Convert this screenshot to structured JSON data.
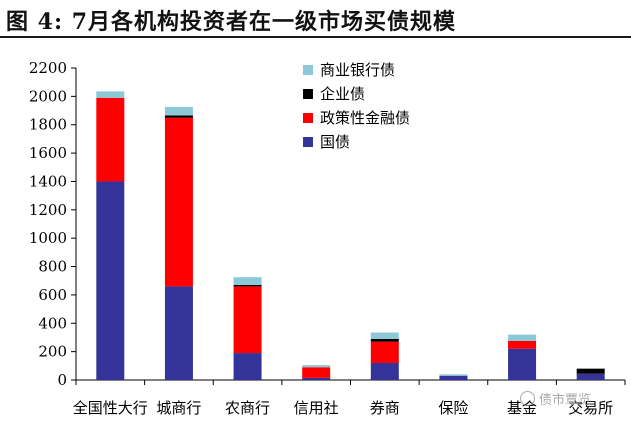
{
  "header": {
    "title": "图 4:  7月各机构投资者在一级市场买债规模"
  },
  "watermark": {
    "text": "债市覃览"
  },
  "chart_data": {
    "type": "bar",
    "stacked": true,
    "categories": [
      "全国性大行",
      "城商行",
      "农商行",
      "信用社",
      "券商",
      "保险",
      "基金",
      "交易所"
    ],
    "series": [
      {
        "name": "国债",
        "color": "#333399",
        "values": [
          1400,
          660,
          190,
          15,
          120,
          30,
          220,
          45
        ]
      },
      {
        "name": "政策性金融债",
        "color": "#ff0000",
        "values": [
          590,
          1190,
          470,
          75,
          150,
          0,
          55,
          0
        ]
      },
      {
        "name": "企业债",
        "color": "#000000",
        "values": [
          0,
          15,
          10,
          0,
          20,
          0,
          0,
          35
        ]
      },
      {
        "name": "商业银行债",
        "color": "#8dc8d8",
        "values": [
          45,
          60,
          55,
          15,
          45,
          10,
          45,
          0
        ]
      }
    ],
    "legend_order": [
      "商业银行债",
      "企业债",
      "政策性金融债",
      "国债"
    ],
    "legend_position": "top-center",
    "ylim": [
      0,
      2200
    ],
    "yticks": [
      0,
      200,
      400,
      600,
      800,
      1000,
      1200,
      1400,
      1600,
      1800,
      2000,
      2200
    ],
    "grid": false
  }
}
